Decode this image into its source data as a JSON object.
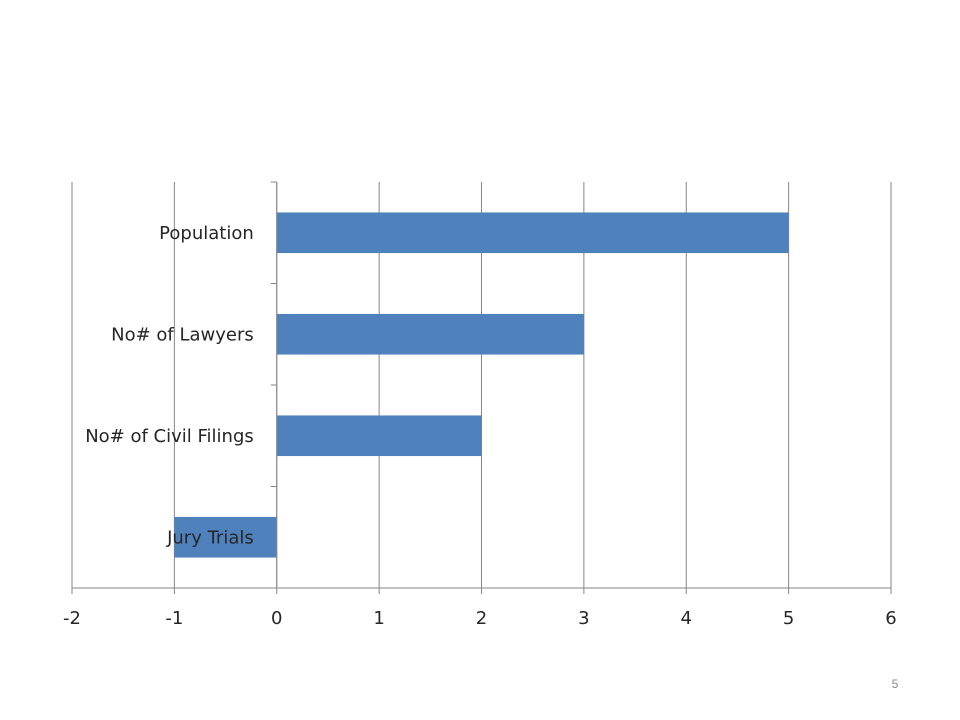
{
  "chart_data": {
    "type": "bar",
    "orientation": "horizontal",
    "categories": [
      "Population",
      "No# of Lawyers",
      "No# of Civil Filings",
      "Jury Trials"
    ],
    "values": [
      5,
      3,
      2,
      -1
    ],
    "xlim": [
      -2,
      6
    ],
    "xticks": [
      "-2",
      "-1",
      "0",
      "1",
      "2",
      "3",
      "4",
      "5",
      "6"
    ],
    "grid": "vertical",
    "bar_color": "#4f81bd"
  },
  "slide": {
    "page_number": "5"
  }
}
